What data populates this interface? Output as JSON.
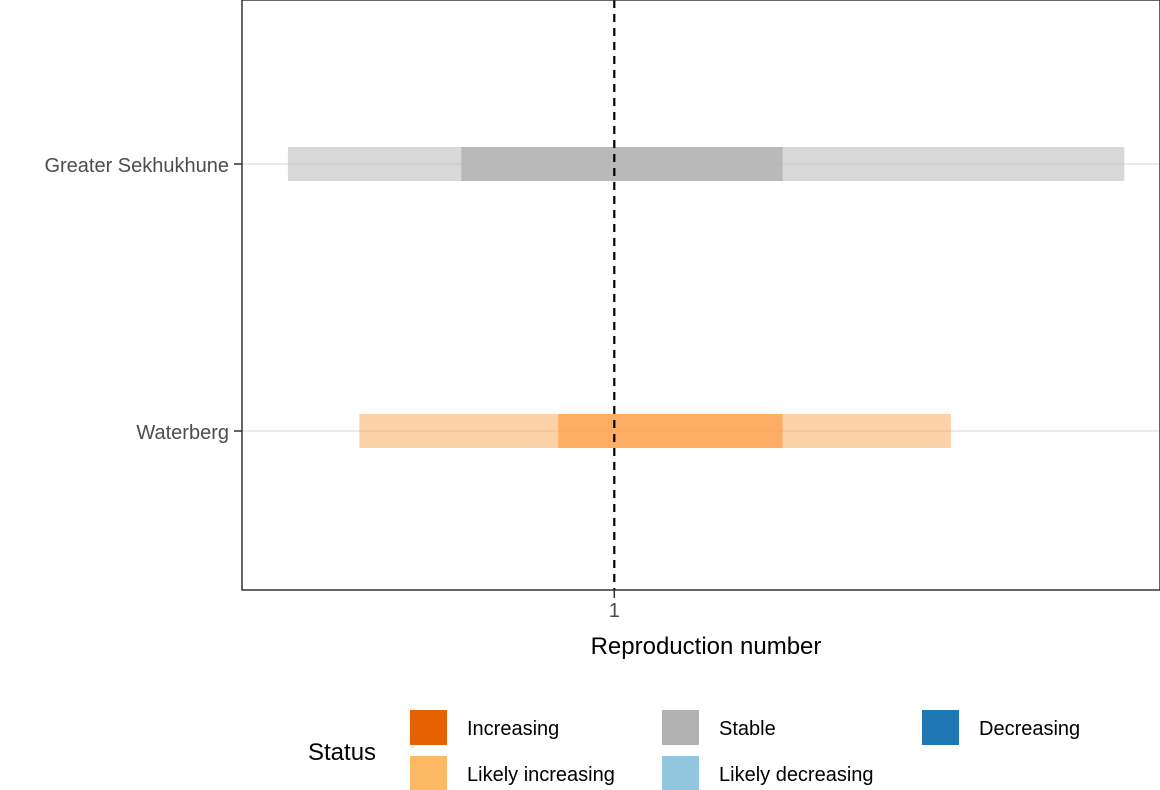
{
  "chart_data": {
    "type": "interval-bar",
    "xlabel": "Reproduction number",
    "ylabel": "",
    "xlim": [
      0.27,
      2.07
    ],
    "x_ticks": [
      {
        "value": 1,
        "label": "1"
      }
    ],
    "reference_line": {
      "x": 1,
      "style": "dashed"
    },
    "grid": {
      "horizontal_major": true
    },
    "categories": [
      "Greater Sekhukhune",
      "Waterberg"
    ],
    "series": [
      {
        "category": "Greater Sekhukhune",
        "status": "Stable",
        "intervals": [
          {
            "type": "outer",
            "lower": 0.36,
            "upper": 2.0
          },
          {
            "type": "inner",
            "lower": 0.7,
            "upper": 1.33
          }
        ]
      },
      {
        "category": "Waterberg",
        "status": "Likely increasing",
        "intervals": [
          {
            "type": "outer",
            "lower": 0.5,
            "upper": 1.66
          },
          {
            "type": "inner",
            "lower": 0.89,
            "upper": 1.33
          }
        ]
      }
    ],
    "legend": {
      "title": "Status",
      "position": "bottom",
      "items": [
        {
          "label": "Increasing",
          "color": "#e66101"
        },
        {
          "label": "Likely increasing",
          "color": "#fdb863"
        },
        {
          "label": "Stable",
          "color": "#b2b2b2"
        },
        {
          "label": "Likely decreasing",
          "color": "#92c5de"
        },
        {
          "label": "Decreasing",
          "color": "#1f78b4"
        }
      ]
    },
    "colors": {
      "Increasing": "#e66101",
      "Likely increasing": "#fda552",
      "Stable": "#b2b2b2",
      "Likely decreasing": "#87cefa",
      "Decreasing": "#1471b0"
    }
  }
}
